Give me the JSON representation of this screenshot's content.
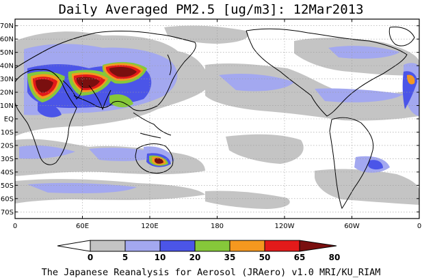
{
  "title": "Daily Averaged PM2.5 [ug/m3]: 12Mar2013",
  "credit": "The Japanese Reanalysis for Aerosol (JRAero) v1.0 MRI/KU_RIAM",
  "map": {
    "projection": "equirectangular",
    "lon_range": [
      0,
      360
    ],
    "lat_range": [
      -75,
      75
    ],
    "lat_ticks": [
      {
        "value": 70,
        "label": "70N"
      },
      {
        "value": 60,
        "label": "60N"
      },
      {
        "value": 50,
        "label": "50N"
      },
      {
        "value": 40,
        "label": "40N"
      },
      {
        "value": 30,
        "label": "30N"
      },
      {
        "value": 20,
        "label": "20N"
      },
      {
        "value": 10,
        "label": "10N"
      },
      {
        "value": 0,
        "label": "EQ"
      },
      {
        "value": -10,
        "label": "10S"
      },
      {
        "value": -20,
        "label": "20S"
      },
      {
        "value": -30,
        "label": "30S"
      },
      {
        "value": -40,
        "label": "40S"
      },
      {
        "value": -50,
        "label": "50S"
      },
      {
        "value": -60,
        "label": "60S"
      },
      {
        "value": -70,
        "label": "70S"
      }
    ],
    "lon_ticks": [
      {
        "value": 0,
        "label": "0"
      },
      {
        "value": 60,
        "label": "60E"
      },
      {
        "value": 120,
        "label": "120E"
      },
      {
        "value": 180,
        "label": "180"
      },
      {
        "value": 240,
        "label": "120W"
      },
      {
        "value": 300,
        "label": "60W"
      },
      {
        "value": 360,
        "label": "0"
      }
    ],
    "gridlines": "dotted every 60 deg longitude and 10 deg latitude"
  },
  "colorbar": {
    "levels": [
      "0",
      "5",
      "10",
      "20",
      "35",
      "50",
      "65",
      "80"
    ],
    "colors": [
      "#ffffff",
      "#c4c4c4",
      "#a3a8f0",
      "#4b55e8",
      "#86c83a",
      "#f5981f",
      "#e31a1a",
      "#7a0f0f"
    ]
  }
}
